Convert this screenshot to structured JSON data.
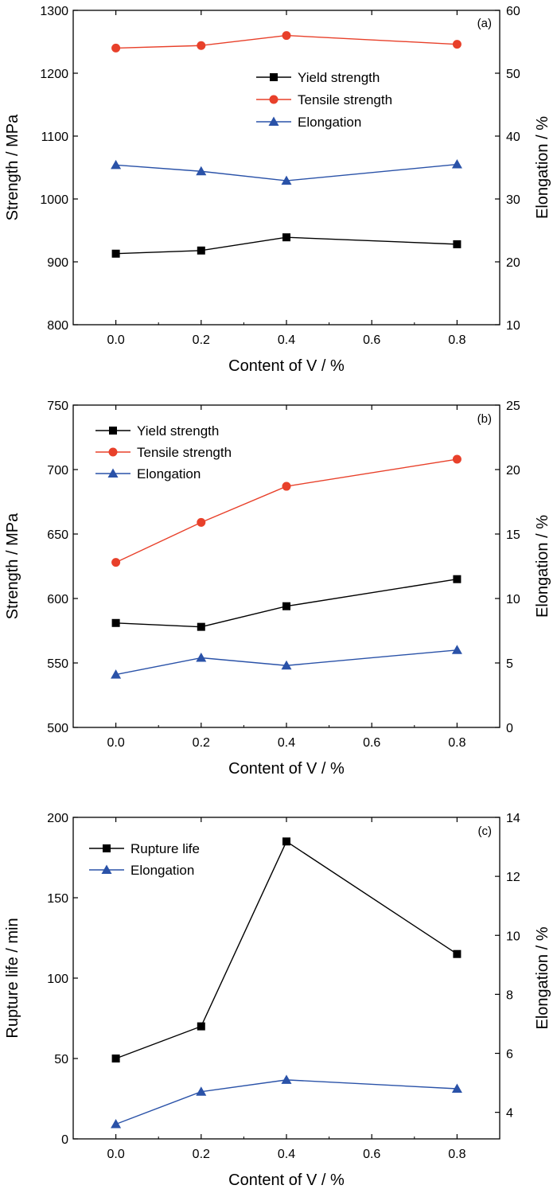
{
  "figure": {
    "panels": [
      "a",
      "b",
      "c"
    ]
  },
  "chart_data": [
    {
      "type": "line",
      "panel_label": "(a)",
      "xlabel": "Content of V / %",
      "ylabel_left": "Strength / MPa",
      "ylabel_right": "Elongation / %",
      "xlim": [
        -0.1,
        0.9
      ],
      "ylim_left": [
        800,
        1300
      ],
      "ylim_right": [
        10,
        60
      ],
      "xticks": [
        0.0,
        0.2,
        0.4,
        0.6,
        0.8
      ],
      "xtick_labels": [
        "0.0",
        "0.2",
        "0.4",
        "0.6",
        "0.8"
      ],
      "yticks_left": [
        800,
        900,
        1000,
        1100,
        1200,
        1300
      ],
      "ytick_labels_left": [
        "800",
        "900",
        "1000",
        "1100",
        "1200",
        "1300"
      ],
      "yticks_right": [
        10,
        20,
        30,
        40,
        50,
        60
      ],
      "ytick_labels_right": [
        "10",
        "20",
        "30",
        "40",
        "50",
        "60"
      ],
      "legend_position": "upper-center-right",
      "grid": false,
      "series": [
        {
          "name": "Yield strength",
          "axis": "left",
          "color": "#000000",
          "marker": "square",
          "x": [
            0.0,
            0.2,
            0.4,
            0.8
          ],
          "values": [
            913,
            918,
            939,
            928
          ]
        },
        {
          "name": "Tensile strength",
          "axis": "left",
          "color": "#e8402a",
          "marker": "circle",
          "x": [
            0.0,
            0.2,
            0.4,
            0.8
          ],
          "values": [
            1240,
            1244,
            1260,
            1246
          ]
        },
        {
          "name": "Elongation",
          "axis": "right",
          "color": "#2a52a8",
          "marker": "triangle",
          "x": [
            0.0,
            0.2,
            0.4,
            0.8
          ],
          "values": [
            35.4,
            34.4,
            32.9,
            35.5
          ]
        }
      ]
    },
    {
      "type": "line",
      "panel_label": "(b)",
      "xlabel": "Content of V / %",
      "ylabel_left": "Strength / MPa",
      "ylabel_right": "Elongation / %",
      "xlim": [
        -0.1,
        0.9
      ],
      "ylim_left": [
        500,
        750
      ],
      "ylim_right": [
        0,
        25
      ],
      "xticks": [
        0.0,
        0.2,
        0.4,
        0.6,
        0.8
      ],
      "xtick_labels": [
        "0.0",
        "0.2",
        "0.4",
        "0.6",
        "0.8"
      ],
      "yticks_left": [
        500,
        550,
        600,
        650,
        700,
        750
      ],
      "ytick_labels_left": [
        "500",
        "550",
        "600",
        "650",
        "700",
        "750"
      ],
      "yticks_right": [
        0,
        5,
        10,
        15,
        20,
        25
      ],
      "ytick_labels_right": [
        "0",
        "5",
        "10",
        "15",
        "20",
        "25"
      ],
      "legend_position": "upper-left",
      "grid": false,
      "series": [
        {
          "name": "Yield strength",
          "axis": "left",
          "color": "#000000",
          "marker": "square",
          "x": [
            0.0,
            0.2,
            0.4,
            0.8
          ],
          "values": [
            581,
            578,
            594,
            615
          ]
        },
        {
          "name": "Tensile strength",
          "axis": "left",
          "color": "#e8402a",
          "marker": "circle",
          "x": [
            0.0,
            0.2,
            0.4,
            0.8
          ],
          "values": [
            628,
            659,
            687,
            708
          ]
        },
        {
          "name": "Elongation",
          "axis": "right",
          "color": "#2a52a8",
          "marker": "triangle",
          "x": [
            0.0,
            0.2,
            0.4,
            0.8
          ],
          "values": [
            4.1,
            5.4,
            4.8,
            6.0
          ]
        }
      ]
    },
    {
      "type": "line",
      "panel_label": "(c)",
      "xlabel": "Content of V / %",
      "ylabel_left": "Rupture life / min",
      "ylabel_right": "Elongation / %",
      "xlim": [
        -0.1,
        0.9
      ],
      "ylim_left": [
        0,
        200
      ],
      "ylim_right": [
        3.1,
        14
      ],
      "xticks": [
        0.0,
        0.2,
        0.4,
        0.6,
        0.8
      ],
      "xtick_labels": [
        "0.0",
        "0.2",
        "0.4",
        "0.6",
        "0.8"
      ],
      "yticks_left": [
        0,
        50,
        100,
        150,
        200
      ],
      "ytick_labels_left": [
        "0",
        "50",
        "100",
        "150",
        "200"
      ],
      "yticks_right": [
        4,
        6,
        8,
        10,
        12,
        14
      ],
      "ytick_labels_right": [
        "4",
        "6",
        "8",
        "10",
        "12",
        "14"
      ],
      "legend_position": "upper-left",
      "grid": false,
      "series": [
        {
          "name": "Rupture life",
          "axis": "left",
          "color": "#000000",
          "marker": "square",
          "x": [
            0.0,
            0.2,
            0.4,
            0.8
          ],
          "values": [
            50,
            70,
            185,
            115
          ]
        },
        {
          "name": "Elongation",
          "axis": "right",
          "color": "#2a52a8",
          "marker": "triangle",
          "x": [
            0.0,
            0.2,
            0.4,
            0.8
          ],
          "values": [
            3.6,
            4.7,
            5.1,
            4.8
          ]
        }
      ]
    }
  ]
}
